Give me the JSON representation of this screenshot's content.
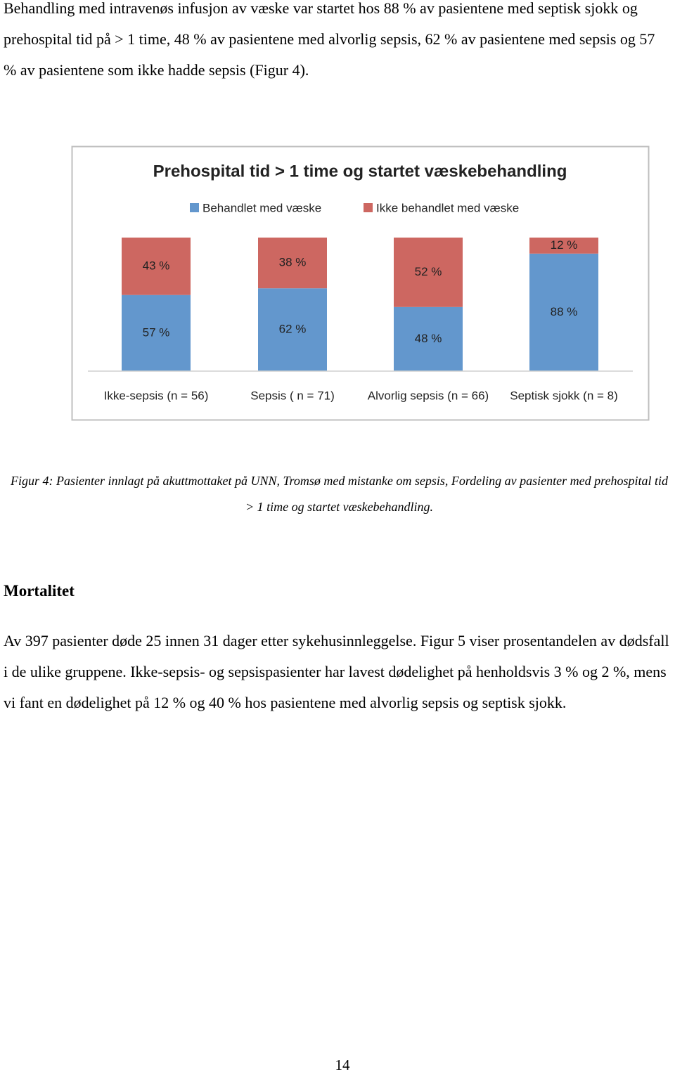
{
  "paragraph1": "Behandling med intravenøs infusjon av væske var startet hos 88 % av pasientene med septisk sjokk og prehospital tid på > 1 time, 48 % av pasientene med alvorlig sepsis, 62 % av pasientene med sepsis og 57 % av pasientene som ikke hadde sepsis (Figur 4).",
  "chart_data": {
    "type": "bar",
    "stacked": true,
    "title": "Prehospital tid > 1 time og startet væskebehandling",
    "categories": [
      "Ikke-sepsis (n = 56)",
      "Sepsis ( n = 71)",
      "Alvorlig sepsis (n = 66)",
      "Septisk sjokk (n = 8)"
    ],
    "series": [
      {
        "name": "Behandlet med væske",
        "color": "#6397cd",
        "values": [
          57,
          62,
          48,
          88
        ],
        "value_labels": [
          "57 %",
          "62 %",
          "48 %",
          "88 %"
        ]
      },
      {
        "name": "Ikke behandlet med væske",
        "color": "#cd6761",
        "values": [
          43,
          38,
          52,
          12
        ],
        "value_labels": [
          "43 %",
          "38 %",
          "52 %",
          "12 %"
        ]
      }
    ],
    "ylim": [
      0,
      100
    ]
  },
  "caption": "Figur 4: Pasienter innlagt på akuttmottaket på UNN, Tromsø med mistanke om sepsis, Fordeling av pasienter med prehospital tid > 1 time og startet væskebehandling.",
  "heading": "Mortalitet",
  "paragraph2": "Av 397 pasienter døde 25 innen 31 dager etter sykehusinnleggelse. Figur 5 viser prosentandelen av dødsfall i de ulike gruppene. Ikke-sepsis- og sepsispasienter har lavest dødelighet på henholdsvis 3 % og 2 %,  mens vi fant en dødelighet på 12 % og 40 % hos pasientene med alvorlig sepsis og septisk sjokk.",
  "page_number": "14"
}
